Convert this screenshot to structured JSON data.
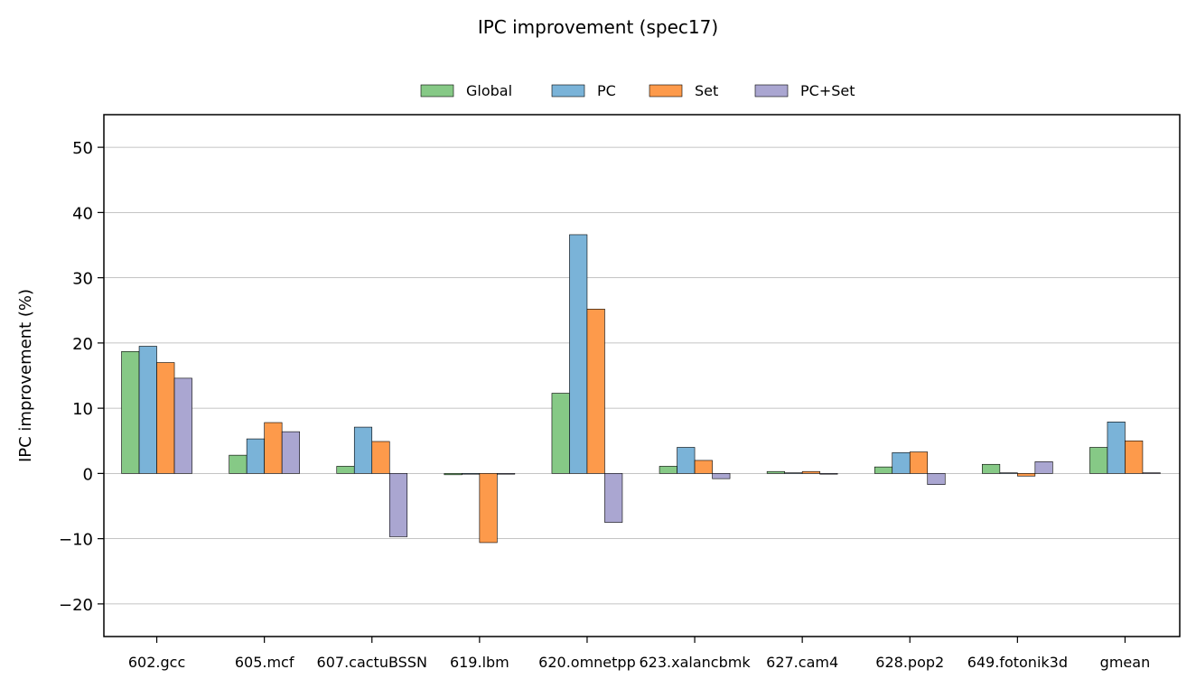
{
  "chart_data": {
    "type": "bar",
    "title": "IPC improvement (spec17)",
    "xlabel": "",
    "ylabel": "IPC improvement (%)",
    "ylim": [
      -25,
      55
    ],
    "yticks": [
      -20,
      -10,
      0,
      10,
      20,
      30,
      40,
      50
    ],
    "ytick_labels": [
      "−20",
      "−10",
      "0",
      "10",
      "20",
      "30",
      "40",
      "50"
    ],
    "grid": "horizontal",
    "legend_position": "top-center",
    "categories": [
      "602.gcc",
      "605.mcf",
      "607.cactuBSSN",
      "619.lbm",
      "620.omnetpp",
      "623.xalancbmk",
      "627.cam4",
      "628.pop2",
      "649.fotonik3d",
      "gmean"
    ],
    "series": [
      {
        "name": "Global",
        "color": "#86c986",
        "values": [
          18.7,
          2.8,
          1.1,
          -0.2,
          12.3,
          1.1,
          0.3,
          1.0,
          1.4,
          4.0
        ]
      },
      {
        "name": "PC",
        "color": "#7ab3d8",
        "values": [
          19.5,
          5.3,
          7.1,
          0.0,
          36.6,
          4.0,
          0.1,
          3.2,
          0.1,
          7.9
        ]
      },
      {
        "name": "Set",
        "color": "#fd9a4b",
        "values": [
          17.0,
          7.8,
          4.9,
          -10.6,
          25.2,
          2.0,
          0.3,
          3.3,
          -0.4,
          5.0
        ]
      },
      {
        "name": "PC+Set",
        "color": "#aaa6d1",
        "values": [
          14.6,
          6.4,
          -9.7,
          0.0,
          -7.5,
          -0.8,
          -0.1,
          -1.7,
          1.8,
          0.1
        ]
      }
    ]
  }
}
